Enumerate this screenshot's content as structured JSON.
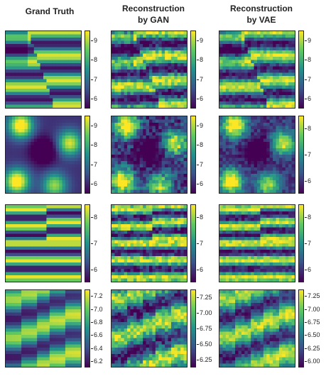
{
  "columns": [
    {
      "title_lines": [
        "Grand Truth"
      ]
    },
    {
      "title_lines": [
        "Reconstruction",
        "by GAN"
      ]
    },
    {
      "title_lines": [
        "Reconstruction",
        "by VAE"
      ]
    }
  ],
  "rows": [
    {
      "pattern": "diag-stripes",
      "colorbars": [
        [
          "9",
          "8",
          "7",
          "6"
        ],
        [
          "9",
          "8",
          "7",
          "6"
        ],
        [
          "9",
          "8",
          "7",
          "6"
        ]
      ]
    },
    {
      "pattern": "blobs",
      "colorbars": [
        [
          "9",
          "8",
          "7",
          "6"
        ],
        [
          "9",
          "8",
          "7",
          "6"
        ],
        [
          "8",
          "7",
          "6"
        ]
      ]
    },
    {
      "pattern": "fine-stripes",
      "colorbars": [
        [
          "8",
          "7",
          "6"
        ],
        [
          "8",
          "7",
          "6"
        ],
        [
          "8",
          "7",
          "6"
        ]
      ]
    },
    {
      "pattern": "steps",
      "colorbars": [
        [
          "7.2",
          "7.0",
          "6.8",
          "6.6",
          "6.4",
          "6.2"
        ],
        [
          "7.25",
          "7.00",
          "6.75",
          "6.50",
          "6.25"
        ],
        [
          "7.25",
          "7.00",
          "6.75",
          "6.50",
          "6.25",
          "6.00"
        ]
      ]
    }
  ],
  "palette": [
    "#440154",
    "#3b528b",
    "#21918c",
    "#5ec962",
    "#fde725"
  ]
}
